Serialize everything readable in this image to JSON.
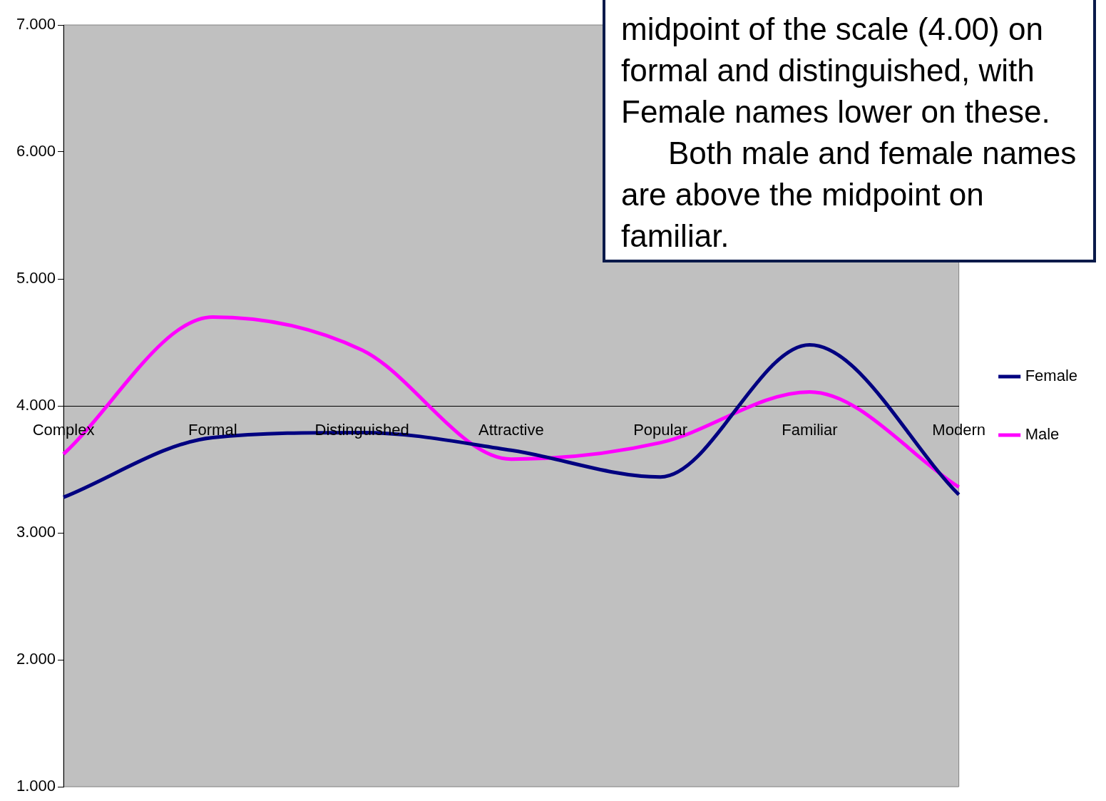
{
  "chart_data": {
    "type": "line",
    "categories": [
      "Complex",
      "Formal",
      "Distinguished",
      "Attractive",
      "Popular",
      "Familiar",
      "Modern"
    ],
    "series": [
      {
        "name": "Female",
        "color": "#000080",
        "values": [
          3.28,
          3.75,
          3.79,
          3.65,
          3.44,
          4.48,
          3.3
        ]
      },
      {
        "name": "Male",
        "color": "#ff00ff",
        "values": [
          3.62,
          4.7,
          4.44,
          3.58,
          3.71,
          4.11,
          3.36
        ]
      }
    ],
    "ylim": [
      1,
      7
    ],
    "yticks": [
      {
        "value": 1,
        "label": "1.000"
      },
      {
        "value": 2,
        "label": "2.000"
      },
      {
        "value": 3,
        "label": "3.000"
      },
      {
        "value": 4,
        "label": "4.000"
      },
      {
        "value": 5,
        "label": "5.000"
      },
      {
        "value": 6,
        "label": "6.000"
      },
      {
        "value": 7,
        "label": "7.000"
      }
    ],
    "grid": false,
    "legend": "right",
    "marker": "none",
    "line_style": "solid",
    "annotations": [
      "midpoint of the scale (4.00) on formal and distinguished, with Female names lower on these.",
      "Both male and female names are above the midpoint on familiar."
    ]
  }
}
